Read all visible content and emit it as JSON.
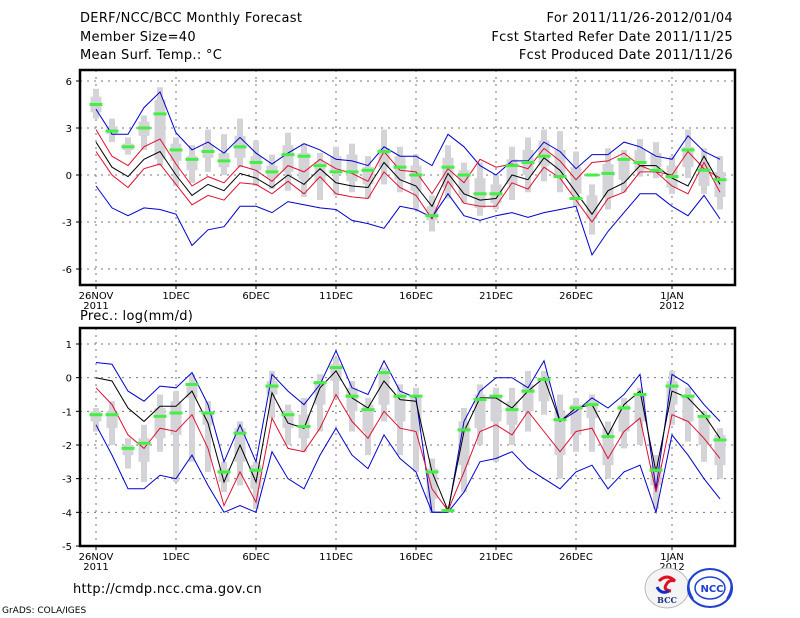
{
  "header": {
    "title": "DERF/NCC/BCC Monthly Forecast",
    "member_size": "Member Size=40",
    "variable": "Mean Surf. Temp.: °C",
    "period": "For 2011/11/26-2012/01/04",
    "started": "Fcst Started Refer Date 2011/11/25",
    "produced": "Fcst Produced Date 2011/11/26"
  },
  "footer": {
    "url": "http://cmdp.ncc.cma.gov.cn",
    "credit": "GrADS: COLA/IGES",
    "logo_bcc": "BCC",
    "logo_ncc": "NCC"
  },
  "colors": {
    "spread_outer": "#0000cc",
    "spread_inner": "#dd1133",
    "mean": "#000000",
    "observed": "#44ee44",
    "box": "#d3d3d8"
  },
  "chart_data": [
    {
      "type": "line",
      "title": "Mean Surf. Temp.: °C",
      "xlabel": "",
      "ylabel": "°C",
      "ylim": [
        -7.5,
        7
      ],
      "yticks": [
        6,
        3,
        0,
        -3,
        -6
      ],
      "ytick_labels": [
        "6",
        "3",
        "0",
        "-3",
        "-6"
      ],
      "xticks": [
        {
          "day": 0,
          "label": "26NOV",
          "sub": "2011"
        },
        {
          "day": 5,
          "label": "1DEC",
          "sub": ""
        },
        {
          "day": 10,
          "label": "6DEC",
          "sub": ""
        },
        {
          "day": 15,
          "label": "11DEC",
          "sub": ""
        },
        {
          "day": 20,
          "label": "16DEC",
          "sub": ""
        },
        {
          "day": 25,
          "label": "21DEC",
          "sub": ""
        },
        {
          "day": 30,
          "label": "26DEC",
          "sub": ""
        },
        {
          "day": 36,
          "label": "1JAN",
          "sub": "2012"
        }
      ],
      "grid": true,
      "x_start": "2011-11-26",
      "n_days": 40,
      "series": [
        {
          "name": "upper-bound",
          "role": "outer",
          "values": [
            4.2,
            2.6,
            2.6,
            4.3,
            5.3,
            2.7,
            1.6,
            2.1,
            1.4,
            2.4,
            1.4,
            0.7,
            1.4,
            2.0,
            1.6,
            1.0,
            0.9,
            0.6,
            1.8,
            1.2,
            1.2,
            0.6,
            2.6,
            1.8,
            0.6,
            0.0,
            0.9,
            0.9,
            2.1,
            1.5,
            0.4,
            1.3,
            1.3,
            2.1,
            1.8,
            1.2,
            1.0,
            2.5,
            1.5,
            1.0
          ]
        },
        {
          "name": "upper-inner",
          "role": "inner",
          "values": [
            2.9,
            1.2,
            0.6,
            1.8,
            2.3,
            0.7,
            -0.7,
            -0.1,
            -0.5,
            0.6,
            0.3,
            -0.4,
            0.6,
            0.2,
            1.0,
            0.4,
            0.1,
            -0.4,
            1.5,
            0.3,
            0.2,
            -1.2,
            0.4,
            -0.5,
            1.0,
            0.5,
            0.7,
            0.4,
            1.7,
            0.9,
            -0.3,
            0.8,
            0.9,
            1.4,
            0.6,
            0.2,
            0.0,
            1.5,
            0.4,
            -0.2
          ]
        },
        {
          "name": "ensemble-mean",
          "role": "mean",
          "values": [
            2.1,
            0.5,
            -0.1,
            1.0,
            1.5,
            0.0,
            -1.3,
            -0.6,
            -1.0,
            0.1,
            -0.2,
            -0.8,
            0.0,
            -0.6,
            0.4,
            -0.5,
            -0.7,
            -0.8,
            0.8,
            -0.3,
            -0.7,
            -2.0,
            0.1,
            -1.2,
            -1.6,
            -1.5,
            0.0,
            -0.3,
            1.1,
            0.3,
            -1.1,
            -2.5,
            -1.0,
            -0.5,
            0.6,
            0.6,
            -0.2,
            -0.7,
            1.2,
            -0.6
          ]
        },
        {
          "name": "lower-inner",
          "role": "inner",
          "values": [
            1.5,
            0.0,
            -0.8,
            0.4,
            0.7,
            -0.6,
            -1.9,
            -1.3,
            -1.6,
            -0.5,
            -0.6,
            -1.2,
            -0.4,
            -1.2,
            -0.1,
            -1.2,
            -1.4,
            -1.5,
            0.2,
            -0.8,
            -1.3,
            -2.8,
            -0.4,
            -1.8,
            -2.0,
            -2.0,
            -0.5,
            -0.9,
            0.5,
            -0.2,
            -1.6,
            -3.0,
            -1.5,
            -1.1,
            0.2,
            0.2,
            -0.7,
            -1.2,
            0.8,
            -1.1
          ]
        },
        {
          "name": "lower-bound",
          "role": "outer",
          "values": [
            -0.7,
            -2.1,
            -2.6,
            -2.1,
            -2.2,
            -2.5,
            -4.5,
            -3.5,
            -3.3,
            -2.0,
            -2.0,
            -2.4,
            -1.7,
            -1.9,
            -2.1,
            -2.2,
            -2.9,
            -3.1,
            -3.4,
            -2.0,
            -2.2,
            -2.7,
            -1.2,
            -2.6,
            -2.9,
            -2.6,
            -2.4,
            -2.7,
            -2.4,
            -2.2,
            -2.0,
            -5.1,
            -3.6,
            -2.4,
            -1.2,
            -1.2,
            -2.0,
            -2.6,
            -1.3,
            -2.8
          ]
        },
        {
          "name": "observed",
          "role": "obs",
          "values": [
            4.5,
            2.8,
            1.8,
            3.0,
            3.9,
            1.6,
            1.0,
            1.5,
            0.9,
            1.8,
            0.8,
            0.2,
            1.3,
            1.2,
            0.6,
            0.2,
            0.2,
            0.3,
            1.5,
            0.5,
            0.0,
            -2.6,
            0.5,
            0.0,
            -1.2,
            -1.2,
            0.6,
            0.8,
            1.2,
            -0.1,
            -1.5,
            0.0,
            0.1,
            1.0,
            0.8,
            0.3,
            -0.1,
            1.6,
            0.3,
            -0.3
          ]
        }
      ],
      "boxes": [
        [
          3.6,
          5.5,
          4.0,
          5.0
        ],
        [
          2.1,
          3.6,
          2.6,
          3.1
        ],
        [
          1.3,
          2.4,
          1.6,
          2.0
        ],
        [
          1.6,
          3.8,
          2.5,
          3.4
        ],
        [
          0.6,
          5.6,
          1.0,
          4.8
        ],
        [
          -0.7,
          2.4,
          0.9,
          2.0
        ],
        [
          -0.5,
          1.9,
          0.3,
          1.2
        ],
        [
          0.2,
          2.9,
          1.1,
          1.9
        ],
        [
          0.0,
          2.6,
          0.5,
          1.4
        ],
        [
          0.5,
          3.6,
          1.1,
          2.5
        ],
        [
          -0.7,
          2.2,
          0.3,
          1.2
        ],
        [
          -0.9,
          1.3,
          -0.2,
          0.6
        ],
        [
          -1.0,
          2.7,
          0.2,
          1.9
        ],
        [
          -1.4,
          2.0,
          -0.3,
          1.4
        ],
        [
          -1.6,
          1.4,
          -0.4,
          0.8
        ],
        [
          -1.3,
          1.8,
          0.2,
          1.2
        ],
        [
          -1.1,
          2.0,
          -0.4,
          1.3
        ],
        [
          -1.5,
          1.2,
          -0.6,
          0.5
        ],
        [
          -0.6,
          2.9,
          0.5,
          1.7
        ],
        [
          -1.1,
          1.8,
          -0.3,
          1.2
        ],
        [
          -2.2,
          1.3,
          -1.0,
          0.6
        ],
        [
          -3.6,
          -1.3,
          -2.9,
          -2.0
        ],
        [
          -1.5,
          1.9,
          -0.8,
          1.1
        ],
        [
          -1.8,
          0.8,
          -1.3,
          0.3
        ],
        [
          -2.6,
          0.8,
          -2.1,
          -0.2
        ],
        [
          -2.2,
          0.0,
          -1.8,
          -0.6
        ],
        [
          -1.6,
          1.8,
          -0.6,
          1.0
        ],
        [
          -1.1,
          2.4,
          0.0,
          1.6
        ],
        [
          -0.4,
          2.9,
          0.6,
          2.2
        ],
        [
          -1.1,
          2.8,
          -0.2,
          1.6
        ],
        [
          -2.0,
          1.5,
          -1.2,
          0.5
        ],
        [
          -3.8,
          -0.6,
          -2.8,
          -1.3
        ],
        [
          -2.2,
          1.7,
          -1.4,
          0.7
        ],
        [
          -1.1,
          1.6,
          -0.3,
          1.0
        ],
        [
          -0.1,
          2.3,
          0.3,
          1.6
        ],
        [
          -0.2,
          2.1,
          0.5,
          1.4
        ],
        [
          -1.2,
          1.2,
          -0.8,
          0.6
        ],
        [
          -0.2,
          2.9,
          0.5,
          1.8
        ],
        [
          -1.2,
          1.7,
          -0.7,
          0.8
        ],
        [
          -2.2,
          1.2,
          -1.4,
          0.2
        ]
      ]
    },
    {
      "type": "line",
      "title": "Prec.: log(mm/d)",
      "xlabel": "",
      "ylabel": "log(mm/d)",
      "ylim": [
        -5,
        1.5
      ],
      "yticks": [
        1,
        0,
        -1,
        -2,
        -3,
        -4,
        -5
      ],
      "ytick_labels": [
        "1",
        "0",
        "-1",
        "-2",
        "-3",
        "-4",
        "-5"
      ],
      "xticks": [
        {
          "day": 0,
          "label": "26NOV",
          "sub": "2011"
        },
        {
          "day": 5,
          "label": "1DEC",
          "sub": ""
        },
        {
          "day": 10,
          "label": "6DEC",
          "sub": ""
        },
        {
          "day": 15,
          "label": "11DEC",
          "sub": ""
        },
        {
          "day": 20,
          "label": "16DEC",
          "sub": ""
        },
        {
          "day": 25,
          "label": "21DEC",
          "sub": ""
        },
        {
          "day": 30,
          "label": "26DEC",
          "sub": ""
        },
        {
          "day": 36,
          "label": "1JAN",
          "sub": "2012"
        }
      ],
      "grid": true,
      "x_start": "2011-11-26",
      "n_days": 40,
      "series": [
        {
          "name": "upper-bound",
          "role": "outer",
          "values": [
            0.45,
            0.4,
            -0.4,
            -0.7,
            -0.25,
            -0.3,
            0.15,
            -0.8,
            -2.5,
            -1.4,
            -2.5,
            0.1,
            -0.4,
            -0.8,
            -0.2,
            0.8,
            -0.3,
            -0.5,
            0.5,
            -0.4,
            -0.6,
            -4.0,
            -4.0,
            -1.3,
            -0.4,
            0.0,
            0.0,
            -0.3,
            0.5,
            -1.3,
            -1.0,
            -0.6,
            -0.9,
            -0.5,
            0.1,
            -3.3,
            0.1,
            -0.2,
            -0.8,
            -1.3
          ]
        },
        {
          "name": "ensemble-mean",
          "role": "mean",
          "values": [
            0.0,
            -0.1,
            -0.9,
            -1.3,
            -0.85,
            -0.85,
            -0.4,
            -1.35,
            -3.1,
            -2.0,
            -3.1,
            -0.45,
            -1.35,
            -1.5,
            -0.3,
            0.2,
            -0.6,
            -0.9,
            -0.1,
            -0.65,
            -0.7,
            -2.8,
            -3.95,
            -1.6,
            -0.6,
            -0.6,
            -0.9,
            -0.4,
            0.0,
            -1.3,
            -0.9,
            -0.8,
            -1.7,
            -0.8,
            -0.4,
            -2.8,
            -0.4,
            -0.6,
            -1.1,
            -1.8
          ]
        },
        {
          "name": "inner",
          "role": "inner",
          "values": [
            -0.3,
            -0.8,
            -1.7,
            -2.1,
            -1.5,
            -1.6,
            -1.1,
            -2.1,
            -3.8,
            -2.8,
            -3.7,
            -1.2,
            -2.1,
            -2.2,
            -1.5,
            -0.5,
            -1.3,
            -1.8,
            -1.0,
            -1.5,
            -1.6,
            -3.3,
            -3.95,
            -2.8,
            -1.6,
            -1.4,
            -1.7,
            -1.0,
            -1.6,
            -2.2,
            -1.6,
            -1.5,
            -2.4,
            -1.6,
            -1.2,
            -3.4,
            -1.1,
            -1.3,
            -1.8,
            -2.4
          ]
        },
        {
          "name": "lower-bound",
          "role": "outer",
          "values": [
            -1.4,
            -2.3,
            -3.3,
            -3.3,
            -2.9,
            -3.0,
            -2.3,
            -3.2,
            -4.0,
            -3.8,
            -4.0,
            -2.2,
            -3.0,
            -3.3,
            -2.3,
            -1.5,
            -2.3,
            -2.7,
            -1.7,
            -2.4,
            -2.8,
            -4.0,
            -4.0,
            -3.4,
            -2.5,
            -2.4,
            -2.2,
            -2.7,
            -3.0,
            -3.3,
            -2.8,
            -2.6,
            -3.3,
            -2.8,
            -2.6,
            -4.0,
            -1.7,
            -2.3,
            -3.0,
            -3.6
          ]
        },
        {
          "name": "observed",
          "role": "obs",
          "values": [
            -1.1,
            -1.1,
            -2.1,
            -1.95,
            -1.15,
            -1.05,
            -0.2,
            -1.05,
            -2.8,
            -1.65,
            -2.75,
            -0.25,
            -1.1,
            -1.45,
            -0.15,
            0.3,
            -0.55,
            -0.95,
            0.15,
            -0.55,
            -0.55,
            -2.8,
            -3.95,
            -1.55,
            -0.65,
            -0.55,
            -0.95,
            -0.4,
            -0.05,
            -1.25,
            -0.9,
            -0.8,
            -1.75,
            -0.9,
            -0.5,
            -2.75,
            -0.25,
            -0.55,
            -1.15,
            -1.85
          ]
        }
      ],
      "boxes": [
        [
          -1.6,
          -0.9,
          -1.3,
          -1.0
        ],
        [
          -2.0,
          -0.7,
          -1.5,
          -1.0
        ],
        [
          -2.7,
          -1.8,
          -2.3,
          -2.0
        ],
        [
          -3.1,
          -1.4,
          -2.5,
          -1.8
        ],
        [
          -2.2,
          -0.5,
          -1.8,
          -0.9
        ],
        [
          -3.1,
          -0.4,
          -1.7,
          -0.7
        ],
        [
          -2.5,
          0.1,
          -0.6,
          -0.2
        ],
        [
          -2.8,
          -0.7,
          -1.4,
          -1.0
        ],
        [
          -3.4,
          -2.5,
          -3.1,
          -2.7
        ],
        [
          -3.2,
          -1.3,
          -2.5,
          -1.5
        ],
        [
          -3.9,
          -2.5,
          -3.3,
          -2.6
        ],
        [
          -1.2,
          0.2,
          -0.5,
          -0.1
        ],
        [
          -2.0,
          -0.8,
          -1.5,
          -1.0
        ],
        [
          -2.2,
          -0.6,
          -1.8,
          -1.1
        ],
        [
          -1.6,
          0.1,
          -0.8,
          -0.1
        ],
        [
          -0.6,
          0.6,
          -0.1,
          0.4
        ],
        [
          -1.6,
          -0.1,
          -1.0,
          -0.3
        ],
        [
          -2.3,
          -0.6,
          -1.6,
          -0.8
        ],
        [
          -1.3,
          0.3,
          -0.8,
          0.1
        ],
        [
          -2.3,
          -0.2,
          -1.3,
          -0.5
        ],
        [
          -2.8,
          -0.3,
          -1.6,
          -0.6
        ],
        [
          -4.0,
          -2.4,
          -3.6,
          -2.7
        ],
        [
          -4.0,
          -3.8,
          -4.0,
          -3.9
        ],
        [
          -3.4,
          -0.9,
          -2.6,
          -1.3
        ],
        [
          -2.0,
          -0.2,
          -1.5,
          -0.5
        ],
        [
          -2.5,
          -0.3,
          -1.3,
          -0.5
        ],
        [
          -2.0,
          -0.3,
          -1.4,
          -0.7
        ],
        [
          -1.6,
          0.2,
          -1.0,
          -0.2
        ],
        [
          -1.1,
          0.2,
          -0.7,
          0.0
        ],
        [
          -3.0,
          -0.5,
          -2.3,
          -1.0
        ],
        [
          -2.2,
          -0.6,
          -1.7,
          -0.8
        ],
        [
          -2.2,
          -0.5,
          -1.2,
          -0.7
        ],
        [
          -3.0,
          -1.3,
          -2.6,
          -1.5
        ],
        [
          -2.1,
          -0.6,
          -1.6,
          -0.8
        ],
        [
          -2.0,
          -0.3,
          -1.3,
          -0.5
        ],
        [
          -3.9,
          -2.3,
          -3.2,
          -2.6
        ],
        [
          -1.4,
          0.2,
          -0.8,
          -0.1
        ],
        [
          -1.9,
          -0.3,
          -1.3,
          -0.5
        ],
        [
          -2.5,
          -1.0,
          -2.0,
          -1.2
        ],
        [
          -3.0,
          -1.5,
          -2.6,
          -1.7
        ]
      ]
    }
  ]
}
